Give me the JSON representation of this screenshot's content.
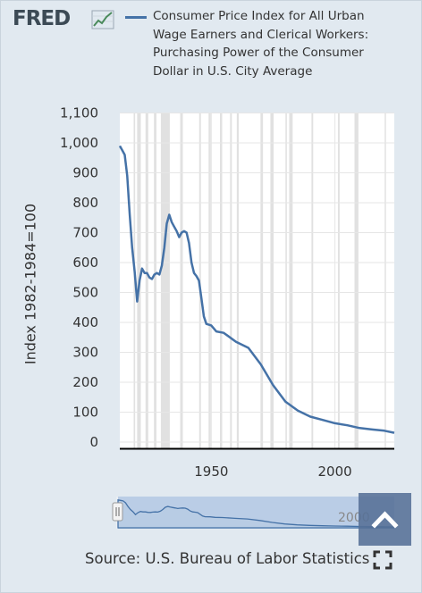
{
  "logo": {
    "text": "FRED"
  },
  "legend": {
    "series_name": "Consumer Price Index for All Urban Wage Earners and Clerical Workers: Purchasing Power of the Consumer Dollar in U.S. City Average",
    "color": "#4572a7"
  },
  "source": {
    "text": "Source: U.S. Bureau of Labor Statistics"
  },
  "navigator": {
    "label": "2000"
  },
  "icons": {
    "expand": "fullscreen-icon",
    "back_to_top": "chevron-up-icon"
  },
  "colors": {
    "background": "#e1e9f0",
    "plot_bg": "#ffffff",
    "recession": "#e1e1e1",
    "line": "#4572a7",
    "navigator_mask": "#a9c2e1"
  },
  "chart_data": {
    "type": "line",
    "ylabel": "Index 1982-1984=100",
    "xlabel": "",
    "x_ticks": [
      1950,
      2000
    ],
    "y_ticks": [
      0,
      100,
      200,
      300,
      400,
      500,
      600,
      700,
      800,
      900,
      1000,
      1100
    ],
    "xlim": [
      1913,
      2024
    ],
    "ylim": [
      0,
      1100
    ],
    "grid": true,
    "legend_position": "top",
    "recessions": [
      [
        1918.6,
        1919.2
      ],
      [
        1920.0,
        1921.5
      ],
      [
        1923.4,
        1924.5
      ],
      [
        1926.8,
        1927.8
      ],
      [
        1929.6,
        1933.2
      ],
      [
        1937.4,
        1938.5
      ],
      [
        1945.1,
        1945.8
      ],
      [
        1948.9,
        1949.8
      ],
      [
        1953.5,
        1954.4
      ],
      [
        1957.6,
        1958.3
      ],
      [
        1960.3,
        1961.1
      ],
      [
        1969.9,
        1970.9
      ],
      [
        1973.9,
        1975.2
      ],
      [
        1980.0,
        1980.5
      ],
      [
        1981.5,
        1982.9
      ],
      [
        1990.5,
        1991.2
      ],
      [
        2001.2,
        2001.9
      ],
      [
        2007.9,
        2009.5
      ],
      [
        2020.1,
        2020.4
      ]
    ],
    "series": [
      {
        "x": [
          1913,
          1914,
          1915,
          1916,
          1917,
          1918,
          1919,
          1920,
          1921,
          1922,
          1923,
          1924,
          1925,
          1926,
          1927,
          1928,
          1929,
          1930,
          1931,
          1932,
          1933,
          1934,
          1935,
          1936,
          1937,
          1938,
          1939,
          1940,
          1941,
          1942,
          1943,
          1944,
          1945,
          1946,
          1947,
          1948,
          1950,
          1952,
          1955,
          1960,
          1965,
          1970,
          1975,
          1980,
          1985,
          1990,
          1995,
          2000,
          2005,
          2010,
          2015,
          2020,
          2024
        ],
        "values": [
          990,
          975,
          960,
          890,
          760,
          650,
          570,
          470,
          540,
          580,
          565,
          565,
          550,
          545,
          560,
          565,
          560,
          590,
          650,
          730,
          760,
          735,
          720,
          705,
          685,
          700,
          705,
          700,
          665,
          600,
          565,
          555,
          540,
          480,
          420,
          395,
          390,
          370,
          365,
          335,
          315,
          260,
          190,
          135,
          105,
          85,
          74,
          63,
          56,
          47,
          42,
          38,
          31
        ]
      }
    ]
  }
}
